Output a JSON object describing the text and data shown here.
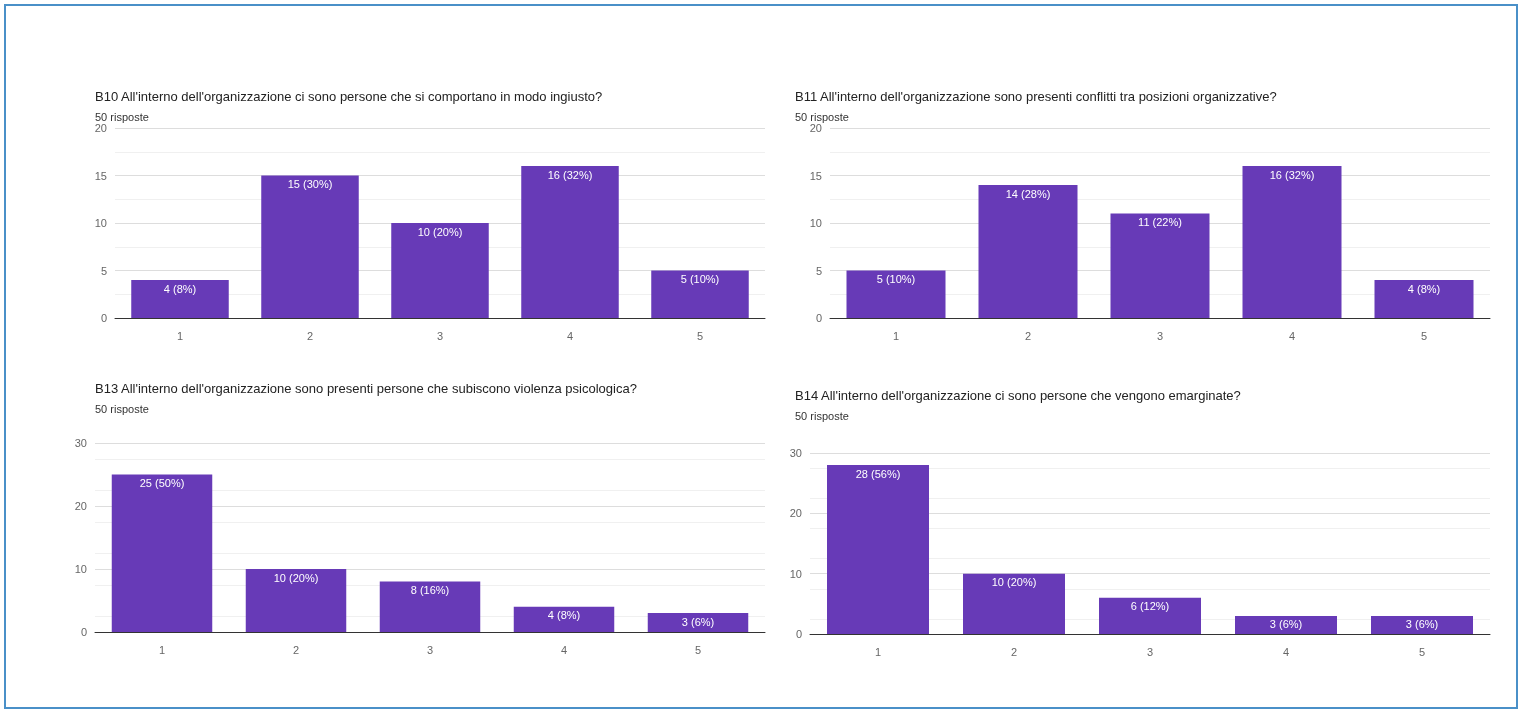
{
  "chart_data": [
    {
      "type": "bar",
      "title": "B10 All'interno dell'organizzazione ci sono persone che si comportano in modo ingiusto?",
      "subtitle": "50 risposte",
      "categories": [
        "1",
        "2",
        "3",
        "4",
        "5"
      ],
      "values": [
        4,
        15,
        10,
        16,
        5
      ],
      "value_labels": [
        "4 (8%)",
        "15 (30%)",
        "10 (20%)",
        "16 (32%)",
        "5 (10%)"
      ],
      "color": "#673ab7",
      "ylim": [
        0,
        20
      ],
      "yticks": [
        0,
        5,
        10,
        15,
        20
      ],
      "grid": "y"
    },
    {
      "type": "bar",
      "title": "B11 All'interno dell'organizzazione sono presenti conflitti tra posizioni organizzative?",
      "subtitle": "50 risposte",
      "categories": [
        "1",
        "2",
        "3",
        "4",
        "5"
      ],
      "values": [
        5,
        14,
        11,
        16,
        4
      ],
      "value_labels": [
        "5 (10%)",
        "14 (28%)",
        "11 (22%)",
        "16 (32%)",
        "4 (8%)"
      ],
      "color": "#673ab7",
      "ylim": [
        0,
        20
      ],
      "yticks": [
        0,
        5,
        10,
        15,
        20
      ],
      "grid": "y"
    },
    {
      "type": "bar",
      "title": "B13 All'interno dell'organizzazione sono presenti persone che subiscono violenza psicologica?",
      "subtitle": "50 risposte",
      "categories": [
        "1",
        "2",
        "3",
        "4",
        "5"
      ],
      "values": [
        25,
        10,
        8,
        4,
        3
      ],
      "value_labels": [
        "25 (50%)",
        "10 (20%)",
        "8 (16%)",
        "4 (8%)",
        "3 (6%)"
      ],
      "color": "#673ab7",
      "ylim": [
        0,
        30
      ],
      "yticks": [
        0,
        10,
        20,
        30
      ],
      "grid": "y"
    },
    {
      "type": "bar",
      "title": "B14 All'interno dell'organizzazione ci sono persone che vengono emarginate?",
      "subtitle": "50 risposte",
      "categories": [
        "1",
        "2",
        "3",
        "4",
        "5"
      ],
      "values": [
        28,
        10,
        6,
        3,
        3
      ],
      "value_labels": [
        "28 (56%)",
        "10 (20%)",
        "6 (12%)",
        "3 (6%)",
        "3 (6%)"
      ],
      "color": "#673ab7",
      "ylim": [
        0,
        30
      ],
      "yticks": [
        0,
        10,
        20,
        30
      ],
      "grid": "y"
    }
  ]
}
